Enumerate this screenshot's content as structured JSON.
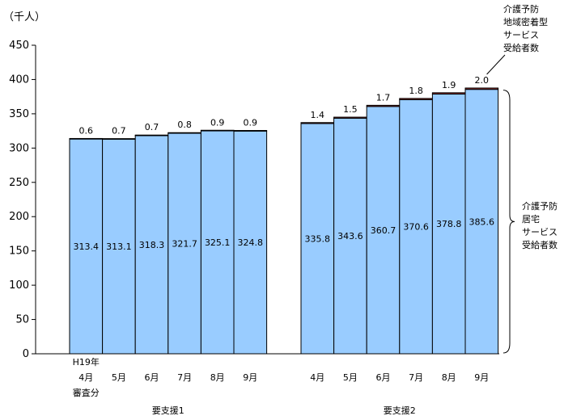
{
  "chart_data": {
    "type": "bar",
    "unit_label": "（千人）",
    "ylim": [
      0,
      450
    ],
    "y_ticks": [
      0,
      50,
      100,
      150,
      200,
      250,
      300,
      350,
      400,
      450
    ],
    "grid": false,
    "groups": [
      {
        "name": "要支援1",
        "categories": [
          [
            "H19年",
            "4月",
            "審査分"
          ],
          [
            "5月"
          ],
          [
            "6月"
          ],
          [
            "7月"
          ],
          [
            "8月"
          ],
          [
            "9月"
          ]
        ]
      },
      {
        "name": "要支援2",
        "categories": [
          [
            "4月"
          ],
          [
            "5月"
          ],
          [
            "6月"
          ],
          [
            "7月"
          ],
          [
            "8月"
          ],
          [
            "9月"
          ]
        ]
      }
    ],
    "series": [
      {
        "name": "介護予防居宅サービス受給者数",
        "label_lines": [
          "介護予防",
          "居宅",
          "サービス",
          "受給者数"
        ],
        "color": "#99CCFF",
        "values": [
          313.4,
          313.1,
          318.3,
          321.7,
          325.1,
          324.8,
          335.8,
          343.6,
          360.7,
          370.6,
          378.8,
          385.6
        ],
        "labels": [
          "313.4",
          "313.1",
          "318.3",
          "321.7",
          "325.1",
          "324.8",
          "335.8",
          "343.6",
          "360.7",
          "370.6",
          "378.8",
          "385.6"
        ]
      },
      {
        "name": "介護予防地域密着型サービス受給者数",
        "label_lines": [
          "介護予防",
          "地域密着型",
          "サービス",
          "受給者数"
        ],
        "color": "#993333",
        "values": [
          0.6,
          0.7,
          0.7,
          0.8,
          0.9,
          0.9,
          1.4,
          1.5,
          1.7,
          1.8,
          1.9,
          2.0
        ],
        "labels": [
          "0.6",
          "0.7",
          "0.7",
          "0.8",
          "0.9",
          "0.9",
          "1.4",
          "1.5",
          "1.7",
          "1.8",
          "1.9",
          "2.0"
        ]
      }
    ]
  }
}
